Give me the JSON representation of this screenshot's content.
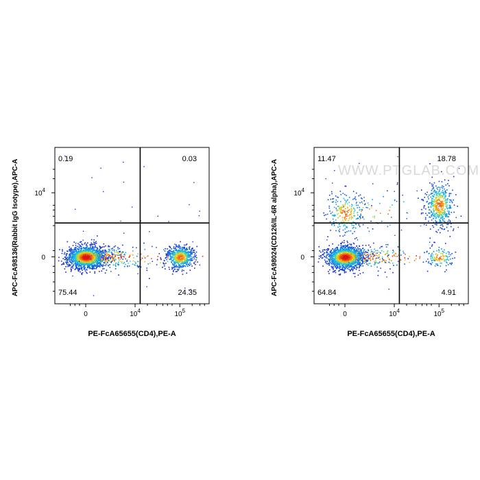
{
  "chart_data": [
    {
      "type": "scatter",
      "subtype": "flow-cytometry-density-dot-plot",
      "xlabel": "PE-FcA65655(CD4),PE-A",
      "ylabel": "APC-FcA98136(Rabbit IgG Isotype),APC-A",
      "x_ticks": [
        {
          "label": "0",
          "value": 0
        },
        {
          "base": "10",
          "exp": "4",
          "value": 10000
        },
        {
          "base": "10",
          "exp": "5",
          "value": 100000
        }
      ],
      "y_ticks": [
        {
          "label": "0",
          "value": 0
        },
        {
          "base": "10",
          "exp": "4",
          "value": 10000
        }
      ],
      "gate": {
        "x": 13000,
        "y": 2000
      },
      "quadrants": {
        "upper_left": "0.19",
        "upper_right": "0.03",
        "lower_left": "75.44",
        "lower_right": "24.35"
      },
      "populations": [
        {
          "name": "CD4-negative",
          "x_center": 0,
          "y_center": 0,
          "share": 75.44
        },
        {
          "name": "CD4-positive",
          "x_center": 100000,
          "y_center": 0,
          "share": 24.35
        }
      ]
    },
    {
      "type": "scatter",
      "subtype": "flow-cytometry-density-dot-plot",
      "xlabel": "PE-FcA65655(CD4),PE-A",
      "ylabel": "APC-FcA98024(CD126/IL-6R alpha),APC-A",
      "x_ticks": [
        {
          "label": "0",
          "value": 0
        },
        {
          "base": "10",
          "exp": "4",
          "value": 10000
        },
        {
          "base": "10",
          "exp": "5",
          "value": 100000
        }
      ],
      "y_ticks": [
        {
          "label": "0",
          "value": 0
        },
        {
          "base": "10",
          "exp": "4",
          "value": 10000
        }
      ],
      "gate": {
        "x": 13000,
        "y": 2000
      },
      "quadrants": {
        "upper_left": "11.47",
        "upper_right": "18.78",
        "lower_left": "64.84",
        "lower_right": "4.91"
      },
      "populations": [
        {
          "name": "double-negative",
          "x_center": 0,
          "y_center": 0,
          "share": 64.84
        },
        {
          "name": "CD126-positive CD4-negative",
          "x_center": 0,
          "y_center": 3500,
          "share": 11.47
        },
        {
          "name": "double-positive",
          "x_center": 100000,
          "y_center": 5500,
          "share": 18.78
        },
        {
          "name": "CD4-positive CD126-negative",
          "x_center": 100000,
          "y_center": 0,
          "share": 4.91
        }
      ]
    }
  ],
  "watermark": "WWW.PTGLAB.COM",
  "colors": {
    "low": "#1020c8",
    "mid": "#12c0e0",
    "high_mid": "#f4d90f",
    "high": "#e02010",
    "gate": "#000000",
    "watermark": "#dcdcdc"
  }
}
